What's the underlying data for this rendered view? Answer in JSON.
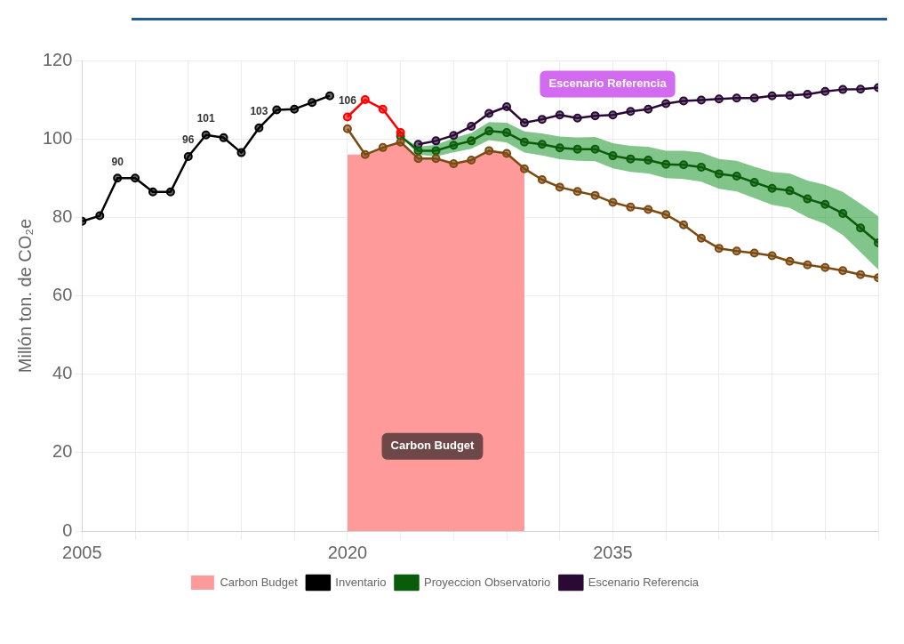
{
  "chart_data": {
    "type": "line",
    "ylabel": "Millón ton. de CO₂e",
    "xlim": [
      2005,
      2050
    ],
    "ylim": [
      0,
      120
    ],
    "yticks": [
      0,
      20,
      40,
      60,
      80,
      100,
      120
    ],
    "xticks": [
      2005,
      {
        "value": 2008,
        "label": null
      },
      {
        "value": 2011,
        "label": null
      },
      {
        "value": 2014,
        "label": null
      },
      {
        "value": 2017,
        "label": null
      },
      2020,
      {
        "value": 2023,
        "label": null
      },
      {
        "value": 2026,
        "label": null
      },
      {
        "value": 2029,
        "label": null
      },
      {
        "value": 2032,
        "label": null
      },
      2035,
      {
        "value": 2038,
        "label": null
      },
      {
        "value": 2041,
        "label": null
      },
      {
        "value": 2044,
        "label": null
      },
      {
        "value": 2047,
        "label": null
      },
      {
        "value": 2050,
        "label": null
      }
    ],
    "grid": true,
    "legend": "bottom",
    "marker": "circle",
    "series": [
      {
        "name": "Carbon Budget",
        "type": "area",
        "marker": "none",
        "color": "#ff9a9a",
        "x": [
          2020,
          2021,
          2022,
          2023,
          2024,
          2025,
          2026,
          2027,
          2028,
          2029,
          2030
        ],
        "values": [
          96,
          96,
          97.8,
          99.2,
          95,
          95,
          93.7,
          94.6,
          97,
          96.3,
          92.4
        ]
      },
      {
        "name": "Inventario",
        "color": "#000000",
        "x": [
          2005,
          2006,
          2007,
          2008,
          2009,
          2010,
          2011,
          2012,
          2013,
          2014,
          2015,
          2016,
          2017,
          2018,
          2019
        ],
        "values": [
          79,
          80.4,
          90,
          90,
          86.5,
          86.5,
          95.5,
          101,
          100.3,
          96.5,
          102.8,
          107.4,
          107.6,
          109.3,
          111
        ],
        "value_labels": [
          null,
          null,
          "90",
          null,
          null,
          null,
          "96",
          "101",
          null,
          null,
          "103",
          null,
          null,
          null,
          null
        ]
      },
      {
        "color": "#ff0000",
        "x": [
          2020,
          2021,
          2022,
          2023
        ],
        "values": [
          105.6,
          110,
          107.6,
          101.6
        ],
        "value_labels": [
          "106",
          null,
          null,
          null
        ]
      },
      {
        "color": "#7b4a12",
        "x": [
          2020,
          2021,
          2022,
          2023,
          2024,
          2025,
          2026,
          2027,
          2028,
          2029,
          2030,
          2031,
          2032,
          2033,
          2034,
          2035,
          2036,
          2037,
          2038,
          2039,
          2040,
          2041,
          2042,
          2043,
          2044,
          2045,
          2046,
          2047,
          2048,
          2049,
          2050
        ],
        "values": [
          102.6,
          96,
          97.8,
          99.2,
          95,
          95,
          93.7,
          94.6,
          97,
          96.3,
          92.4,
          89.6,
          87.7,
          86.6,
          85.6,
          83.8,
          82.6,
          82,
          80.7,
          78.1,
          74.7,
          72.1,
          71.4,
          70.9,
          70.2,
          68.8,
          67.9,
          67.2,
          66.4,
          65.4,
          64.6
        ]
      },
      {
        "name": "Proyeccion Observatorio",
        "color": "#0a5c0a",
        "x": [
          2023,
          2024,
          2025,
          2026,
          2027,
          2028,
          2029,
          2030,
          2031,
          2032,
          2033,
          2034,
          2035,
          2036,
          2037,
          2038,
          2039,
          2040,
          2041,
          2042,
          2043,
          2044,
          2045,
          2046,
          2047,
          2048,
          2049,
          2050
        ],
        "values": [
          100.7,
          97,
          97,
          98.4,
          99.5,
          102,
          101.6,
          99.2,
          98.6,
          97.7,
          97.4,
          97.4,
          95.7,
          94.9,
          94.6,
          93.5,
          93.4,
          92.8,
          91.1,
          90.5,
          88.9,
          87.4,
          86.8,
          84.7,
          83.3,
          81,
          77.3,
          73.5
        ],
        "upper": [
          100.7,
          98,
          98.5,
          100.2,
          101.5,
          104.3,
          104.1,
          101.9,
          101.4,
          100.6,
          100.4,
          100.5,
          98.9,
          98.2,
          98,
          97,
          97,
          96.5,
          94.9,
          94.4,
          92.9,
          91.6,
          91.2,
          89.4,
          88.3,
          86.5,
          83.5,
          80.3
        ],
        "lower": [
          100.7,
          96,
          95.5,
          96.6,
          97.5,
          99.7,
          99.1,
          96.5,
          95.8,
          94.8,
          94.4,
          94.3,
          92.5,
          91.6,
          91.2,
          90,
          89.8,
          89.1,
          87.3,
          86.6,
          84.9,
          83.2,
          82.4,
          80,
          78.3,
          75.5,
          71.1,
          66.7
        ]
      },
      {
        "name": "Escenario Referencia",
        "color": "#2a0a35",
        "x": [
          2024,
          2025,
          2026,
          2027,
          2028,
          2029,
          2030,
          2031,
          2032,
          2033,
          2034,
          2035,
          2036,
          2037,
          2038,
          2039,
          2040,
          2041,
          2042,
          2043,
          2044,
          2045,
          2046,
          2047,
          2048,
          2049,
          2050
        ],
        "values": [
          98.6,
          99.5,
          100.9,
          103.2,
          106.5,
          108.2,
          104.1,
          105,
          106.1,
          105.3,
          105.9,
          106.1,
          107,
          107.6,
          109,
          109.7,
          109.9,
          110.2,
          110.4,
          110.4,
          111,
          111.1,
          111.4,
          112.1,
          112.6,
          112.7,
          113.1
        ]
      }
    ],
    "annotations": [
      "Escenario Referencia",
      "Carbon Budget"
    ]
  }
}
